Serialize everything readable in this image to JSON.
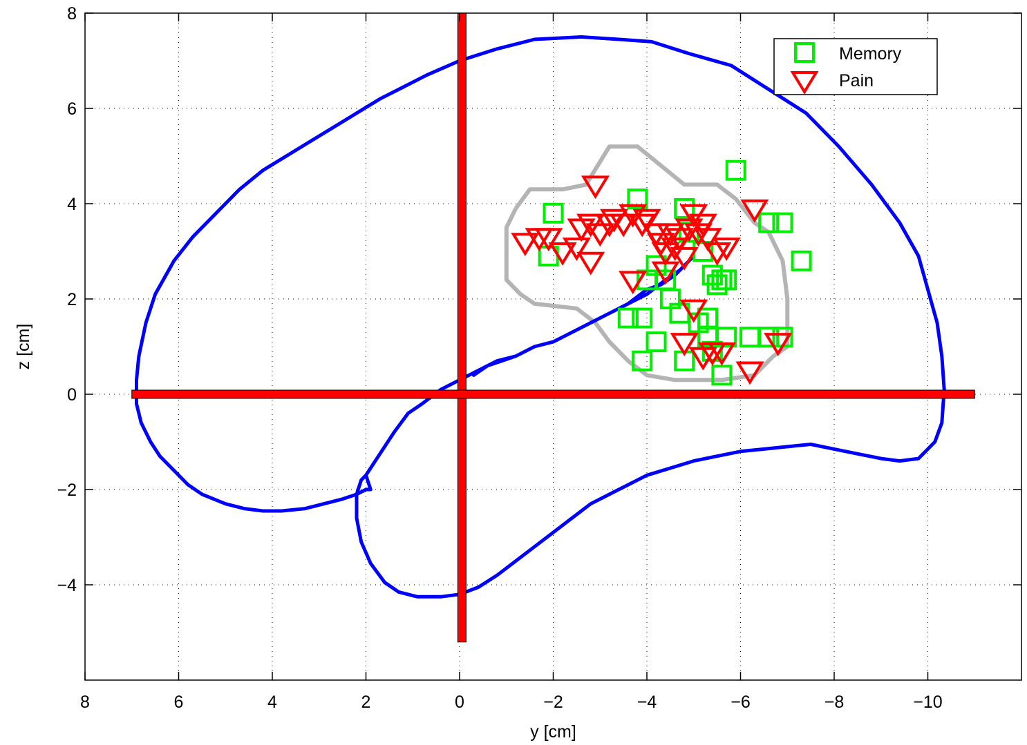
{
  "chart_data": {
    "type": "scatter",
    "title": "",
    "xlabel": "y [cm]",
    "ylabel": "z [cm]",
    "xlim": [
      8,
      -12
    ],
    "ylim": [
      -6,
      8
    ],
    "x_reversed": true,
    "grid": true,
    "legend_position": "top-right",
    "x_ticks": [
      8,
      6,
      4,
      2,
      0,
      -2,
      -4,
      -6,
      -8,
      -10
    ],
    "x_tick_labels": [
      "8",
      "6",
      "4",
      "2",
      "0",
      "−2",
      "−4",
      "−6",
      "−8",
      "−10"
    ],
    "y_ticks": [
      8,
      6,
      4,
      2,
      0,
      -2,
      -4
    ],
    "y_tick_labels": [
      "8",
      "6",
      "4",
      "2",
      "0",
      "−2",
      "−4"
    ],
    "colors": {
      "memory": "#00ee00",
      "pain": "#ff0000",
      "outline": "#0000ff",
      "region": "#b4b4b4",
      "crosshair": "#ff0000"
    },
    "series": [
      {
        "name": "Memory",
        "marker": "square",
        "points": [
          [
            -1.9,
            2.9
          ],
          [
            -2.0,
            3.8
          ],
          [
            -3.8,
            4.1
          ],
          [
            -4.8,
            3.9
          ],
          [
            -5.9,
            4.7
          ],
          [
            -5.7,
            2.4
          ],
          [
            -3.6,
            1.6
          ],
          [
            -3.9,
            1.6
          ],
          [
            -4.0,
            2.4
          ],
          [
            -4.2,
            2.7
          ],
          [
            -4.4,
            2.4
          ],
          [
            -4.5,
            2.0
          ],
          [
            -4.7,
            1.7
          ],
          [
            -5.1,
            1.5
          ],
          [
            -5.3,
            1.6
          ],
          [
            -5.4,
            2.5
          ],
          [
            -5.5,
            2.3
          ],
          [
            -5.6,
            2.4
          ],
          [
            -5.2,
            3.0
          ],
          [
            -4.9,
            3.4
          ],
          [
            -4.2,
            1.1
          ],
          [
            -3.9,
            0.7
          ],
          [
            -4.8,
            0.7
          ],
          [
            -5.4,
            0.9
          ],
          [
            -5.7,
            1.2
          ],
          [
            -5.6,
            0.4
          ],
          [
            -6.2,
            1.2
          ],
          [
            -6.6,
            1.2
          ],
          [
            -6.9,
            1.2
          ],
          [
            -6.6,
            3.6
          ],
          [
            -6.9,
            3.6
          ],
          [
            -7.3,
            2.8
          ],
          [
            -5.3,
            1.2
          ]
        ]
      },
      {
        "name": "Pain",
        "marker": "triangle-down",
        "points": [
          [
            -1.4,
            3.2
          ],
          [
            -1.7,
            3.3
          ],
          [
            -1.9,
            3.3
          ],
          [
            -2.2,
            3.0
          ],
          [
            -2.5,
            3.1
          ],
          [
            -2.6,
            3.5
          ],
          [
            -2.8,
            3.6
          ],
          [
            -2.8,
            2.8
          ],
          [
            -2.9,
            4.4
          ],
          [
            -3.0,
            3.4
          ],
          [
            -3.2,
            3.6
          ],
          [
            -3.3,
            3.7
          ],
          [
            -3.5,
            3.6
          ],
          [
            -3.7,
            3.8
          ],
          [
            -3.9,
            3.6
          ],
          [
            -4.0,
            3.7
          ],
          [
            -4.2,
            3.4
          ],
          [
            -4.3,
            3.2
          ],
          [
            -4.4,
            3.0
          ],
          [
            -4.5,
            3.4
          ],
          [
            -4.6,
            3.1
          ],
          [
            -4.7,
            3.3
          ],
          [
            -4.8,
            2.9
          ],
          [
            -4.9,
            3.5
          ],
          [
            -5.0,
            3.8
          ],
          [
            -5.1,
            3.4
          ],
          [
            -5.2,
            3.6
          ],
          [
            -5.3,
            3.3
          ],
          [
            -5.5,
            3.0
          ],
          [
            -5.7,
            3.1
          ],
          [
            -3.7,
            2.4
          ],
          [
            -4.4,
            2.6
          ],
          [
            -5.0,
            1.8
          ],
          [
            -4.8,
            1.1
          ],
          [
            -5.2,
            0.8
          ],
          [
            -5.4,
            0.9
          ],
          [
            -5.6,
            0.9
          ],
          [
            -6.2,
            0.5
          ],
          [
            -6.8,
            1.1
          ],
          [
            -6.3,
            3.9
          ]
        ]
      }
    ],
    "outline_path": [
      [
        -0.3,
        0.4
      ],
      [
        -0.6,
        0.6
      ],
      [
        -0.9,
        0.7
      ],
      [
        -1.2,
        0.8
      ],
      [
        -1.6,
        1.0
      ],
      [
        -2.0,
        1.1
      ],
      [
        -2.4,
        1.3
      ],
      [
        -2.8,
        1.5
      ],
      [
        -3.2,
        1.7
      ],
      [
        -3.6,
        1.9
      ],
      [
        -4.0,
        2.1
      ],
      [
        -4.4,
        2.4
      ],
      [
        -4.7,
        2.6
      ],
      [
        -4.9,
        2.8
      ],
      [
        -5.0,
        2.9
      ],
      [
        -4.9,
        2.8
      ],
      [
        -4.6,
        2.5
      ],
      [
        -4.3,
        2.3
      ],
      [
        -4.0,
        2.2
      ],
      [
        -3.6,
        1.9
      ],
      [
        -3.2,
        1.7
      ],
      [
        -2.8,
        1.5
      ],
      [
        -2.4,
        1.3
      ],
      [
        -2.0,
        1.1
      ],
      [
        -1.6,
        1.0
      ],
      [
        -1.2,
        0.8
      ],
      [
        -0.8,
        0.7
      ],
      [
        -0.4,
        0.5
      ],
      [
        0.0,
        0.3
      ],
      [
        0.4,
        0.1
      ],
      [
        0.8,
        -0.2
      ],
      [
        1.1,
        -0.4
      ],
      [
        1.4,
        -0.8
      ],
      [
        1.6,
        -1.1
      ],
      [
        1.8,
        -1.4
      ],
      [
        2.0,
        -1.7
      ],
      [
        1.9,
        -2.0
      ],
      [
        2.0,
        -2.0
      ],
      [
        2.2,
        -2.1
      ],
      [
        2.5,
        -2.2
      ],
      [
        2.9,
        -2.3
      ],
      [
        3.3,
        -2.4
      ],
      [
        3.8,
        -2.45
      ],
      [
        4.2,
        -2.45
      ],
      [
        4.6,
        -2.4
      ],
      [
        5.0,
        -2.3
      ],
      [
        5.5,
        -2.1
      ],
      [
        5.8,
        -1.9
      ],
      [
        6.1,
        -1.6
      ],
      [
        6.4,
        -1.3
      ],
      [
        6.6,
        -1.0
      ],
      [
        6.8,
        -0.6
      ],
      [
        6.9,
        -0.2
      ],
      [
        6.9,
        0.3
      ],
      [
        6.85,
        0.8
      ],
      [
        6.7,
        1.5
      ],
      [
        6.5,
        2.1
      ],
      [
        6.1,
        2.8
      ],
      [
        5.7,
        3.3
      ],
      [
        5.2,
        3.8
      ],
      [
        4.7,
        4.3
      ],
      [
        4.2,
        4.7
      ],
      [
        3.7,
        5.0
      ],
      [
        3.2,
        5.3
      ],
      [
        2.7,
        5.6
      ],
      [
        2.2,
        5.9
      ],
      [
        1.7,
        6.2
      ],
      [
        1.2,
        6.45
      ],
      [
        0.7,
        6.7
      ],
      [
        0.0,
        7.0
      ],
      [
        -0.8,
        7.25
      ],
      [
        -1.6,
        7.45
      ],
      [
        -2.6,
        7.5
      ],
      [
        -3.4,
        7.45
      ],
      [
        -4.1,
        7.4
      ],
      [
        -4.9,
        7.15
      ],
      [
        -5.8,
        6.9
      ],
      [
        -6.6,
        6.4
      ],
      [
        -7.4,
        5.9
      ],
      [
        -8.1,
        5.2
      ],
      [
        -8.8,
        4.4
      ],
      [
        -9.4,
        3.6
      ],
      [
        -9.8,
        2.9
      ],
      [
        -10.0,
        2.2
      ],
      [
        -10.2,
        1.5
      ],
      [
        -10.3,
        0.8
      ],
      [
        -10.35,
        0.1
      ],
      [
        -10.3,
        -0.6
      ],
      [
        -10.15,
        -1.0
      ],
      [
        -9.8,
        -1.35
      ],
      [
        -9.4,
        -1.4
      ],
      [
        -9.0,
        -1.35
      ],
      [
        -8.5,
        -1.25
      ],
      [
        -8.0,
        -1.15
      ],
      [
        -7.5,
        -1.05
      ],
      [
        -7.0,
        -1.1
      ],
      [
        -6.5,
        -1.15
      ],
      [
        -6.0,
        -1.2
      ],
      [
        -5.5,
        -1.3
      ],
      [
        -5.0,
        -1.4
      ],
      [
        -4.5,
        -1.55
      ],
      [
        -4.0,
        -1.7
      ],
      [
        -3.6,
        -1.9
      ],
      [
        -3.2,
        -2.1
      ],
      [
        -2.8,
        -2.3
      ],
      [
        -2.4,
        -2.6
      ],
      [
        -2.0,
        -2.9
      ],
      [
        -1.6,
        -3.2
      ],
      [
        -1.2,
        -3.5
      ],
      [
        -0.8,
        -3.8
      ],
      [
        -0.4,
        -4.05
      ],
      [
        0.0,
        -4.2
      ],
      [
        0.4,
        -4.25
      ],
      [
        0.9,
        -4.25
      ],
      [
        1.3,
        -4.15
      ],
      [
        1.6,
        -3.95
      ],
      [
        1.9,
        -3.55
      ],
      [
        2.1,
        -3.1
      ],
      [
        2.2,
        -2.6
      ],
      [
        2.2,
        -2.1
      ],
      [
        2.1,
        -1.8
      ],
      [
        2.0,
        -1.7
      ]
    ],
    "region_polygon": [
      [
        -1.2,
        3.9
      ],
      [
        -1.5,
        4.3
      ],
      [
        -2.2,
        4.3
      ],
      [
        -2.7,
        4.4
      ],
      [
        -3.2,
        5.2
      ],
      [
        -3.8,
        5.2
      ],
      [
        -4.3,
        4.8
      ],
      [
        -4.8,
        4.4
      ],
      [
        -5.5,
        4.4
      ],
      [
        -5.9,
        4.1
      ],
      [
        -6.3,
        3.6
      ],
      [
        -6.6,
        3.4
      ],
      [
        -6.9,
        2.8
      ],
      [
        -7.0,
        2.0
      ],
      [
        -7.0,
        1.0
      ],
      [
        -6.7,
        0.8
      ],
      [
        -6.3,
        0.4
      ],
      [
        -5.6,
        0.3
      ],
      [
        -4.6,
        0.3
      ],
      [
        -4.0,
        0.4
      ],
      [
        -3.6,
        0.7
      ],
      [
        -3.2,
        1.1
      ],
      [
        -2.9,
        1.5
      ],
      [
        -2.5,
        1.8
      ],
      [
        -1.6,
        1.9
      ],
      [
        -1.3,
        2.1
      ],
      [
        -1.0,
        2.4
      ],
      [
        -1.0,
        3.5
      ],
      [
        -1.2,
        3.9
      ]
    ],
    "crosshair": {
      "vertical": {
        "y": -0.05,
        "z_from": -5.2,
        "z_to": 8.0
      },
      "horizontal": {
        "z": 0.0,
        "y_from": 7.0,
        "y_to": -11.0
      }
    }
  }
}
